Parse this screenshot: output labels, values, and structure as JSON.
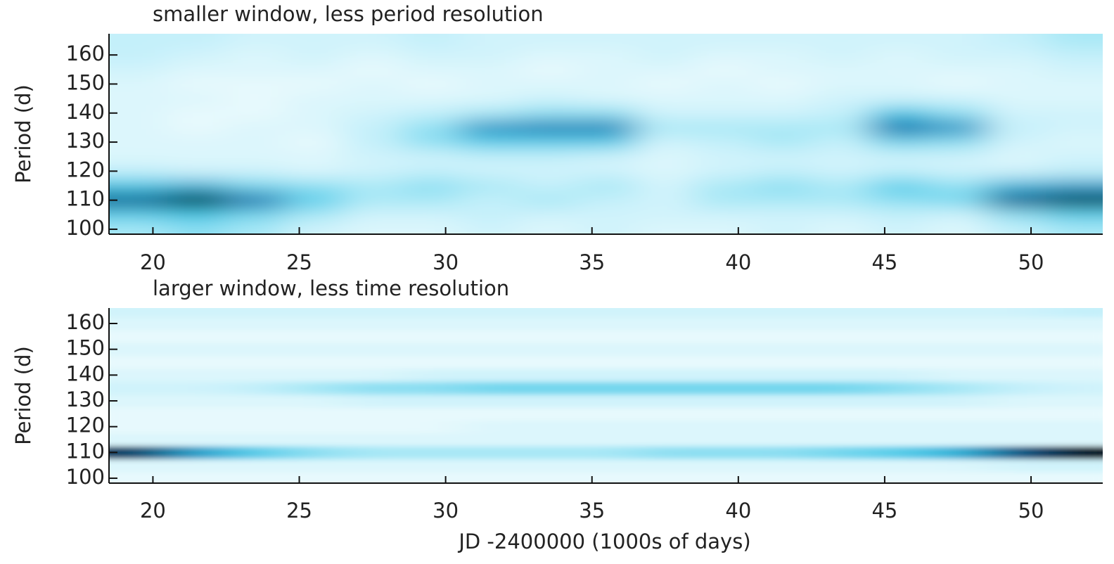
{
  "chart_data": [
    {
      "type": "heatmap",
      "title": "smaller window, less period resolution",
      "ylabel": "Period (d)",
      "x": [
        19.5,
        21.5,
        23.5,
        25.5,
        27.5,
        29.5,
        31.5,
        33.5,
        35.5,
        37.5,
        39.5,
        41.5,
        43.5,
        45.5,
        47.5,
        49.5,
        51.5
      ],
      "y": [
        100,
        105,
        110,
        115,
        120,
        125,
        130,
        135,
        140,
        145,
        150,
        155,
        160,
        165
      ],
      "z": [
        [
          0.3,
          0.35,
          0.3,
          0.2,
          0.15,
          0.15,
          0.2,
          0.15,
          0.2,
          0.15,
          0.15,
          0.2,
          0.15,
          0.2,
          0.15,
          0.25,
          0.3
        ],
        [
          0.45,
          0.5,
          0.4,
          0.3,
          0.2,
          0.2,
          0.25,
          0.2,
          0.2,
          0.2,
          0.2,
          0.2,
          0.2,
          0.25,
          0.2,
          0.35,
          0.45
        ],
        [
          0.8,
          1,
          0.75,
          0.45,
          0.3,
          0.3,
          0.25,
          0.3,
          0.25,
          0.2,
          0.3,
          0.3,
          0.3,
          0.35,
          0.4,
          0.8,
          0.9
        ],
        [
          0.5,
          0.55,
          0.4,
          0.35,
          0.3,
          0.35,
          0.3,
          0.25,
          0.3,
          0.2,
          0.3,
          0.35,
          0.3,
          0.45,
          0.35,
          0.55,
          0.6
        ],
        [
          0.25,
          0.2,
          0.2,
          0.15,
          0.2,
          0.25,
          0.2,
          0.2,
          0.2,
          0.15,
          0.2,
          0.25,
          0.2,
          0.25,
          0.2,
          0.2,
          0.25
        ],
        [
          0.15,
          0.15,
          0.15,
          0.15,
          0.2,
          0.2,
          0.25,
          0.25,
          0.2,
          0.15,
          0.2,
          0.2,
          0.2,
          0.2,
          0.2,
          0.15,
          0.2
        ],
        [
          0.15,
          0.15,
          0.15,
          0.1,
          0.25,
          0.35,
          0.45,
          0.45,
          0.45,
          0.2,
          0.25,
          0.3,
          0.25,
          0.4,
          0.35,
          0.2,
          0.15
        ],
        [
          0.15,
          0.1,
          0.15,
          0.15,
          0.25,
          0.35,
          0.65,
          0.7,
          0.7,
          0.3,
          0.3,
          0.3,
          0.3,
          0.75,
          0.65,
          0.25,
          0.2
        ],
        [
          0.15,
          0.1,
          0.1,
          0.15,
          0.2,
          0.25,
          0.3,
          0.35,
          0.35,
          0.2,
          0.2,
          0.2,
          0.25,
          0.5,
          0.35,
          0.2,
          0.2
        ],
        [
          0.15,
          0.15,
          0.1,
          0.15,
          0.15,
          0.15,
          0.15,
          0.2,
          0.15,
          0.15,
          0.15,
          0.15,
          0.2,
          0.2,
          0.2,
          0.15,
          0.15
        ],
        [
          0.15,
          0.1,
          0.1,
          0.1,
          0.15,
          0.1,
          0.15,
          0.15,
          0.15,
          0.1,
          0.15,
          0.1,
          0.15,
          0.15,
          0.1,
          0.15,
          0.15
        ],
        [
          0.2,
          0.15,
          0.15,
          0.15,
          0.1,
          0.15,
          0.15,
          0.1,
          0.15,
          0.15,
          0.1,
          0.15,
          0.15,
          0.15,
          0.15,
          0.15,
          0.2
        ],
        [
          0.25,
          0.2,
          0.15,
          0.2,
          0.15,
          0.2,
          0.2,
          0.15,
          0.15,
          0.2,
          0.15,
          0.15,
          0.2,
          0.15,
          0.2,
          0.2,
          0.25
        ],
        [
          0.25,
          0.25,
          0.2,
          0.2,
          0.2,
          0.25,
          0.2,
          0.2,
          0.2,
          0.2,
          0.2,
          0.2,
          0.2,
          0.2,
          0.2,
          0.25,
          0.3
        ]
      ],
      "colormap": [
        "#ffffff",
        "#c4f0fa",
        "#3ec6e6",
        "#0e6aa8",
        "#000000"
      ],
      "xlim": [
        18.5,
        52.45
      ],
      "ylim": [
        98.3,
        167.3
      ],
      "xticks": [
        20,
        25,
        30,
        35,
        40,
        45,
        50
      ],
      "yticks": [
        100,
        110,
        120,
        130,
        140,
        150,
        160
      ]
    },
    {
      "type": "heatmap",
      "title": "larger window, less time resolution",
      "ylabel": "Period (d)",
      "xlabel": "JD -2400000 (1000s of days)",
      "x": [
        19.5,
        21.5,
        23.5,
        25.5,
        27.5,
        29.5,
        31.5,
        33.5,
        35.5,
        37.5,
        39.5,
        41.5,
        43.5,
        45.5,
        47.5,
        49.5,
        51.5
      ],
      "y": [
        100,
        105,
        110,
        115,
        120,
        125,
        130,
        135,
        140,
        145,
        150,
        155,
        160,
        165
      ],
      "z": [
        [
          0.1,
          0.1,
          0.1,
          0.1,
          0.1,
          0.1,
          0.1,
          0.1,
          0.1,
          0.1,
          0.1,
          0.1,
          0.1,
          0.1,
          0.1,
          0.1,
          0.1
        ],
        [
          0.15,
          0.15,
          0.15,
          0.15,
          0.15,
          0.15,
          0.15,
          0.15,
          0.15,
          0.15,
          0.15,
          0.15,
          0.15,
          0.15,
          0.15,
          0.2,
          0.2
        ],
        [
          0.85,
          0.6,
          0.45,
          0.35,
          0.3,
          0.3,
          0.3,
          0.3,
          0.3,
          0.35,
          0.35,
          0.35,
          0.4,
          0.45,
          0.55,
          0.8,
          0.95
        ],
        [
          0.15,
          0.15,
          0.15,
          0.15,
          0.15,
          0.15,
          0.15,
          0.15,
          0.15,
          0.15,
          0.15,
          0.15,
          0.15,
          0.15,
          0.15,
          0.15,
          0.15
        ],
        [
          0.1,
          0.1,
          0.1,
          0.1,
          0.1,
          0.1,
          0.15,
          0.15,
          0.15,
          0.15,
          0.15,
          0.15,
          0.15,
          0.15,
          0.15,
          0.15,
          0.15
        ],
        [
          0.1,
          0.1,
          0.1,
          0.1,
          0.1,
          0.1,
          0.1,
          0.1,
          0.1,
          0.1,
          0.1,
          0.1,
          0.1,
          0.1,
          0.1,
          0.1,
          0.1
        ],
        [
          0.15,
          0.15,
          0.15,
          0.15,
          0.2,
          0.2,
          0.2,
          0.2,
          0.2,
          0.2,
          0.2,
          0.2,
          0.2,
          0.2,
          0.2,
          0.15,
          0.15
        ],
        [
          0.2,
          0.2,
          0.25,
          0.3,
          0.35,
          0.35,
          0.4,
          0.4,
          0.4,
          0.4,
          0.4,
          0.4,
          0.4,
          0.35,
          0.3,
          0.25,
          0.2
        ],
        [
          0.15,
          0.15,
          0.15,
          0.15,
          0.15,
          0.2,
          0.2,
          0.2,
          0.2,
          0.2,
          0.2,
          0.2,
          0.2,
          0.2,
          0.15,
          0.15,
          0.15
        ],
        [
          0.1,
          0.1,
          0.1,
          0.1,
          0.1,
          0.1,
          0.1,
          0.1,
          0.1,
          0.1,
          0.1,
          0.1,
          0.1,
          0.1,
          0.1,
          0.1,
          0.1
        ],
        [
          0.15,
          0.15,
          0.15,
          0.15,
          0.15,
          0.15,
          0.15,
          0.15,
          0.15,
          0.15,
          0.15,
          0.15,
          0.15,
          0.15,
          0.15,
          0.15,
          0.15
        ],
        [
          0.1,
          0.1,
          0.1,
          0.1,
          0.1,
          0.1,
          0.1,
          0.1,
          0.1,
          0.1,
          0.1,
          0.1,
          0.1,
          0.1,
          0.1,
          0.1,
          0.1
        ],
        [
          0.15,
          0.15,
          0.15,
          0.15,
          0.15,
          0.15,
          0.15,
          0.15,
          0.15,
          0.15,
          0.15,
          0.15,
          0.15,
          0.15,
          0.15,
          0.15,
          0.15
        ],
        [
          0.2,
          0.2,
          0.2,
          0.2,
          0.2,
          0.2,
          0.2,
          0.2,
          0.2,
          0.2,
          0.2,
          0.2,
          0.2,
          0.2,
          0.2,
          0.2,
          0.25
        ]
      ],
      "colormap": [
        "#ffffff",
        "#c4f0fa",
        "#3ec6e6",
        "#0e6aa8",
        "#000000"
      ],
      "xlim": [
        18.5,
        52.45
      ],
      "ylim": [
        98.1,
        166
      ],
      "xticks": [
        20,
        25,
        30,
        35,
        40,
        45,
        50
      ],
      "yticks": [
        100,
        110,
        120,
        130,
        140,
        150,
        160
      ]
    }
  ]
}
